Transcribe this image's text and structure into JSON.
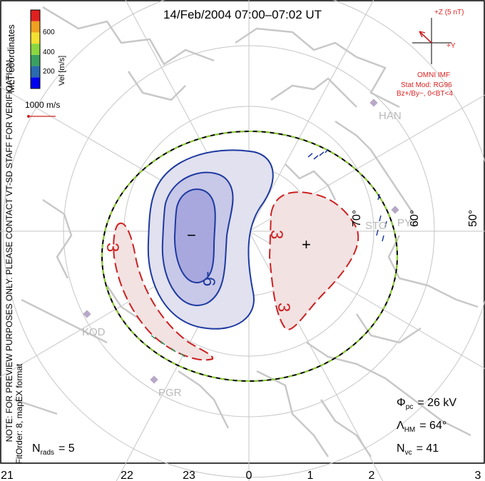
{
  "title": "14/Feb/2004 07:00–07:02 UT",
  "velocity_scale": {
    "label": "Vel [m/s]",
    "ticks": [
      "600",
      "400",
      "200"
    ],
    "colors": [
      "#0000ee",
      "#2a6ab0",
      "#3aa060",
      "#8ad640",
      "#f3e030",
      "#f0a020",
      "#e02020"
    ]
  },
  "reference_vector": {
    "label": "1000 m/s"
  },
  "left_notes": {
    "line1": "MLT coordinates",
    "line2": "NOTE: FOR PREVIEW PURPOSES ONLY. PLEASE CONTACT VT-SD STAFF FOR VERIFICATION.",
    "line3": "FitOrder: 8, mapEX format"
  },
  "imf": {
    "z_label": "+Z (5 nT)",
    "y_label": "+Y",
    "model_title": "OMNI IMF",
    "model_line1": "Stat Mod: RG96",
    "model_line2": "Bz+/By−, 0<BT<4"
  },
  "stations": [
    "HAN",
    "PYK",
    "KOD",
    "PGR",
    "STO"
  ],
  "latitude_labels": [
    "70°",
    "60°",
    "50°"
  ],
  "contour_labels": [
    "-6",
    "3",
    "3",
    "3"
  ],
  "focus_markers": [
    "−",
    "+"
  ],
  "mlt_labels": [
    "21",
    "22",
    "23",
    "0",
    "1",
    "2",
    "3"
  ],
  "stats": {
    "phi_symbol": "Φ",
    "phi_sub": "pc",
    "phi_value": "= 26 kV",
    "lambda_symbol": "Λ",
    "lambda_sub": "HM",
    "lambda_value": "= 64°",
    "nvc_symbol": "N",
    "nvc_sub": "vc",
    "nvc_value": "= 41",
    "nrads_symbol": "N",
    "nrads_sub": "rads",
    "nrads_value": "= 5"
  }
}
